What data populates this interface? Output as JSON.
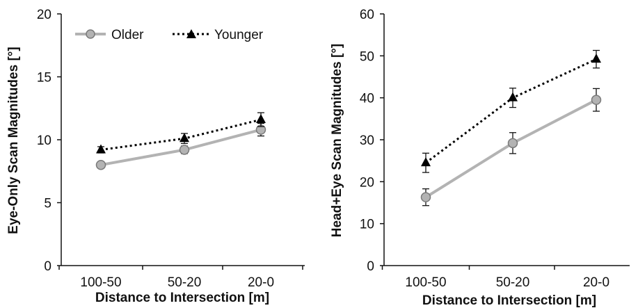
{
  "chart_data": [
    {
      "type": "line",
      "categories": [
        "100-50",
        "50-20",
        "20-0"
      ],
      "xlabel": "Distance to Intersection [m]",
      "ylabel": "Eye-Only Scan Magnitudes [°]",
      "ylim": [
        0,
        20
      ],
      "yticks": [
        0,
        5,
        10,
        15,
        20
      ],
      "legend_position": "top-left",
      "grid": false,
      "series": [
        {
          "name": "Older",
          "values": [
            8.0,
            9.2,
            10.8
          ],
          "errors": [
            0.25,
            0.3,
            0.5
          ],
          "color": "#b3b3b3",
          "line": "solid",
          "marker": "circle"
        },
        {
          "name": "Younger",
          "values": [
            9.2,
            10.1,
            11.6
          ],
          "errors": [
            0.25,
            0.4,
            0.55
          ],
          "color": "#000000",
          "line": "dotted",
          "marker": "triangle"
        }
      ]
    },
    {
      "type": "line",
      "categories": [
        "100-50",
        "50-20",
        "20-0"
      ],
      "xlabel": "Distance to Intersection [m]",
      "ylabel": "Head+Eye Scan Magnitudes [°]",
      "ylim": [
        0,
        60
      ],
      "yticks": [
        0,
        10,
        20,
        30,
        40,
        50,
        60
      ],
      "grid": false,
      "series": [
        {
          "name": "Older",
          "values": [
            16.3,
            29.2,
            39.5
          ],
          "errors": [
            2.0,
            2.5,
            2.7
          ],
          "color": "#b3b3b3",
          "line": "solid",
          "marker": "circle"
        },
        {
          "name": "Younger",
          "values": [
            24.5,
            40.0,
            49.2
          ],
          "errors": [
            2.3,
            2.3,
            2.1
          ],
          "color": "#000000",
          "line": "dotted",
          "marker": "triangle"
        }
      ]
    }
  ]
}
